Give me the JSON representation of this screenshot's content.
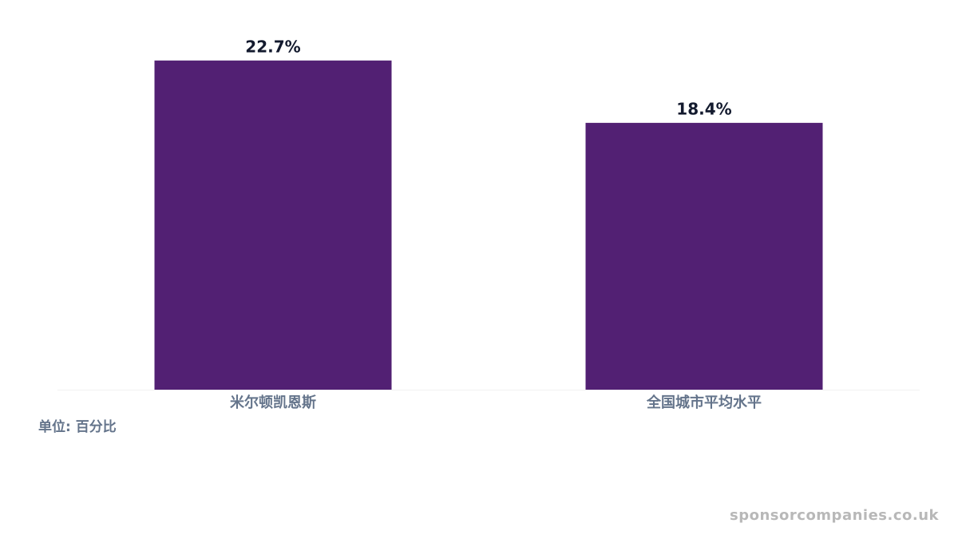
{
  "chart_data": {
    "type": "bar",
    "categories": [
      "米尔顿凯恩斯",
      "全国城市平均水平"
    ],
    "values": [
      22.7,
      18.4
    ],
    "value_labels": [
      "22.7%",
      "18.4%"
    ],
    "color": "#522073",
    "ylim": [
      0,
      25
    ],
    "note": "单位: 百分比",
    "watermark": "sponsorcompanies.co.uk"
  }
}
